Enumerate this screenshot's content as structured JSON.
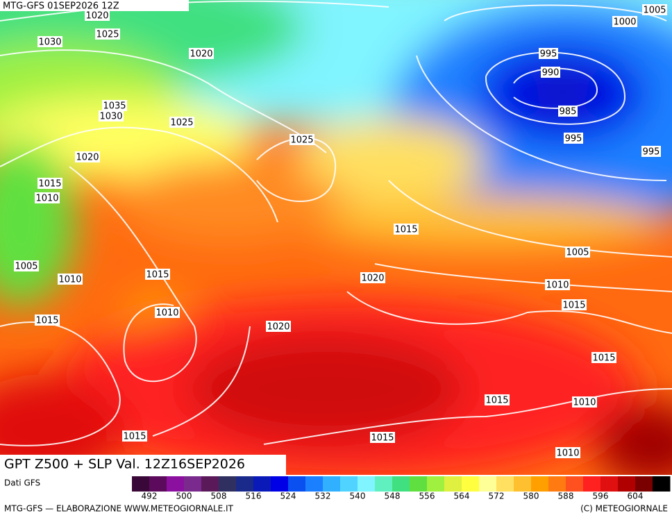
{
  "header": {
    "run": "MTG-GFS 01SEP2026 12Z",
    "title": "GPT Z500 + SLP Val. 12Z16SEP2026",
    "source": "Dati GFS"
  },
  "isobar_labels": [
    "1020",
    "1025",
    "1030",
    "1020",
    "1035",
    "1030",
    "1025",
    "1020",
    "1015",
    "1010",
    "1005",
    "1010",
    "1015",
    "1010",
    "1015",
    "1020",
    "1015",
    "1025",
    "1015",
    "1020",
    "1005",
    "1000",
    "995",
    "990",
    "985",
    "995",
    "995",
    "1005",
    "1010",
    "1015",
    "1015",
    "1015",
    "1010",
    "1015",
    "1010"
  ],
  "colorbar": {
    "labels": [
      "492",
      "500",
      "508",
      "516",
      "524",
      "532",
      "540",
      "548",
      "556",
      "564",
      "572",
      "580",
      "588",
      "596",
      "604"
    ],
    "colors": [
      "#3a0838",
      "#5c0a5c",
      "#8c10a0",
      "#7a2a8c",
      "#5a1a5a",
      "#303060",
      "#1a2a8a",
      "#0a1ab8",
      "#0000e6",
      "#0a50f0",
      "#1a80ff",
      "#30b0ff",
      "#50d4ff",
      "#80f4ff",
      "#60f0c0",
      "#40e080",
      "#60e040",
      "#a0f040",
      "#e0f040",
      "#ffff40",
      "#ffff98",
      "#ffe060",
      "#ffc030",
      "#ffa000",
      "#ff7a10",
      "#ff5020",
      "#ff2020",
      "#e01010",
      "#b00000",
      "#7a0000",
      "#000000"
    ]
  },
  "footer": {
    "left": "MTG-GFS — ELABORAZIONE WWW.METEOGIORNALE.IT",
    "right": "(C) METEOGIORNALE"
  }
}
